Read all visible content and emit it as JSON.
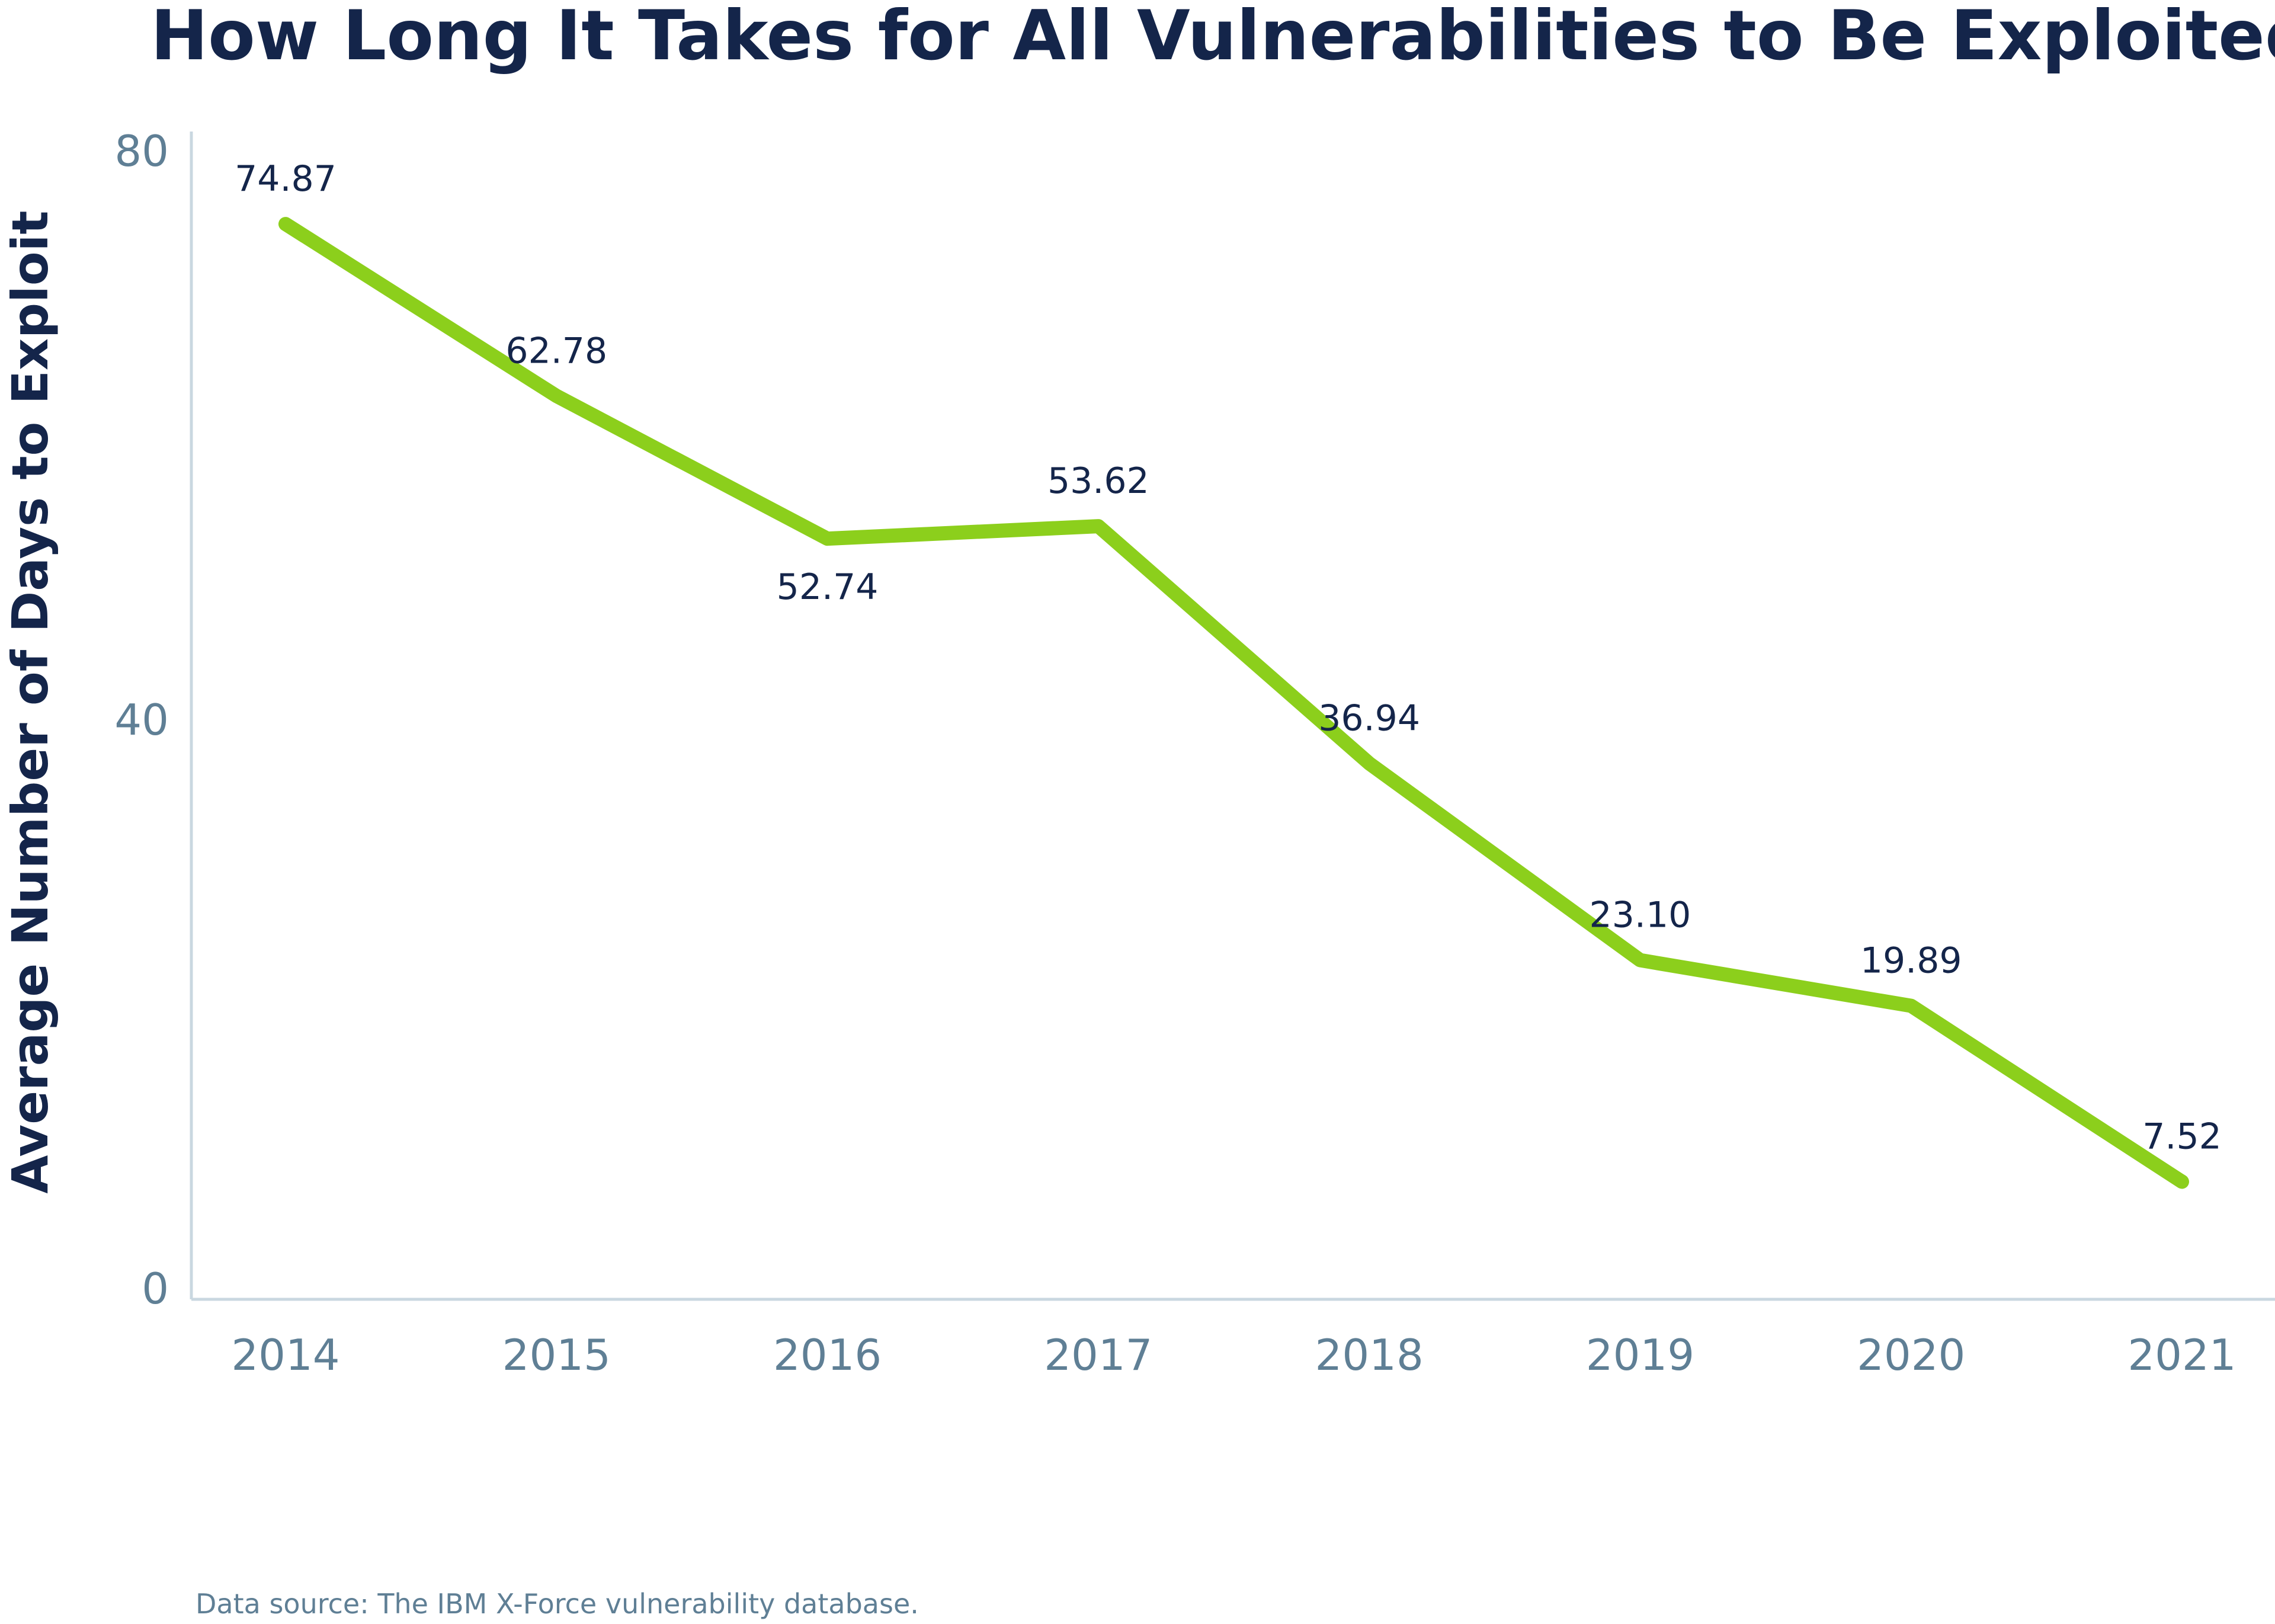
{
  "chart_data": {
    "type": "line",
    "title": "How Long It Takes for All Vulnerabilities to Be Exploited",
    "xlabel": "",
    "ylabel": "Average Number of Days to Exploit",
    "categories": [
      "2014",
      "2015",
      "2016",
      "2017",
      "2018",
      "2019",
      "2020",
      "2021"
    ],
    "series": [
      {
        "values": [
          74.87,
          62.78,
          52.74,
          53.62,
          36.94,
          23.1,
          19.89,
          7.52
        ],
        "labels": [
          "74.87",
          "62.78",
          "52.74",
          "53.62",
          "36.94",
          "23.10",
          "19.89",
          "7.52"
        ],
        "color": "#8ccf1c"
      }
    ],
    "ylim": [
      0,
      80
    ],
    "yticks": [
      "0",
      "40",
      "80"
    ],
    "grid": false,
    "legend": "none",
    "note": "Data source: The IBM X-Force vulnerability database."
  }
}
